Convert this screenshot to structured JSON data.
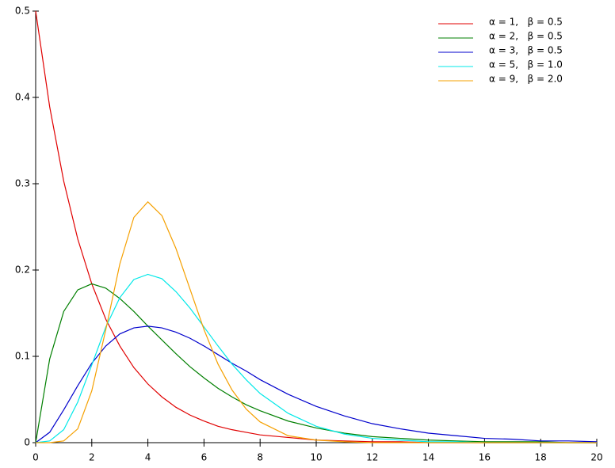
{
  "chart_data": {
    "type": "line",
    "x": [
      0,
      0.5,
      1,
      1.5,
      2,
      2.5,
      3,
      3.5,
      4,
      4.5,
      5,
      5.5,
      6,
      6.5,
      7,
      7.5,
      8,
      9,
      10,
      11,
      12,
      13,
      14,
      15,
      16,
      17,
      18,
      19,
      20
    ],
    "series": [
      {
        "name": "α = 1,   β = 0.5",
        "color": "#e00000",
        "values": [
          0.5,
          0.389,
          0.303,
          0.236,
          0.184,
          0.143,
          0.112,
          0.087,
          0.068,
          0.053,
          0.041,
          0.032,
          0.025,
          0.019,
          0.015,
          0.012,
          0.009,
          0.006,
          0.003,
          0.002,
          0.001,
          0.001,
          0,
          0,
          0,
          0,
          0,
          0,
          0
        ]
      },
      {
        "name": "α = 2,   β = 0.5",
        "color": "#007f00",
        "values": [
          0,
          0.097,
          0.152,
          0.177,
          0.184,
          0.179,
          0.167,
          0.152,
          0.135,
          0.119,
          0.103,
          0.088,
          0.075,
          0.063,
          0.053,
          0.044,
          0.037,
          0.025,
          0.017,
          0.011,
          0.007,
          0.005,
          0.003,
          0.002,
          0.001,
          0.001,
          0.001,
          0,
          0
        ]
      },
      {
        "name": "α = 3,   β = 0.5",
        "color": "#0000cc",
        "values": [
          0,
          0.012,
          0.038,
          0.066,
          0.092,
          0.112,
          0.126,
          0.133,
          0.135,
          0.133,
          0.128,
          0.121,
          0.112,
          0.102,
          0.092,
          0.083,
          0.073,
          0.056,
          0.042,
          0.031,
          0.022,
          0.016,
          0.011,
          0.008,
          0.005,
          0.004,
          0.002,
          0.002,
          0.001
        ]
      },
      {
        "name": "α = 5,   β = 1.0",
        "color": "#00e8e8",
        "values": [
          0,
          0.002,
          0.015,
          0.047,
          0.09,
          0.134,
          0.168,
          0.189,
          0.195,
          0.19,
          0.175,
          0.156,
          0.134,
          0.112,
          0.091,
          0.073,
          0.057,
          0.034,
          0.019,
          0.01,
          0.005,
          0.003,
          0.001,
          0.001,
          0,
          0,
          0,
          0,
          0
        ]
      },
      {
        "name": "α = 9,   β = 2.0",
        "color": "#f5a000",
        "values": [
          0,
          0,
          0.002,
          0.016,
          0.06,
          0.131,
          0.207,
          0.261,
          0.279,
          0.263,
          0.225,
          0.178,
          0.131,
          0.091,
          0.061,
          0.039,
          0.024,
          0.008,
          0.003,
          0.001,
          0,
          0,
          0,
          0,
          0,
          0,
          0,
          0,
          0
        ]
      }
    ],
    "xlim": [
      0,
      20
    ],
    "xticks": [
      0,
      2,
      4,
      6,
      8,
      10,
      12,
      14,
      16,
      18,
      20
    ],
    "ylim": [
      0,
      0.5
    ],
    "yticks": [
      0,
      0.1,
      0.2,
      0.3,
      0.4,
      0.5
    ],
    "grid": false,
    "legend": "upper right"
  }
}
